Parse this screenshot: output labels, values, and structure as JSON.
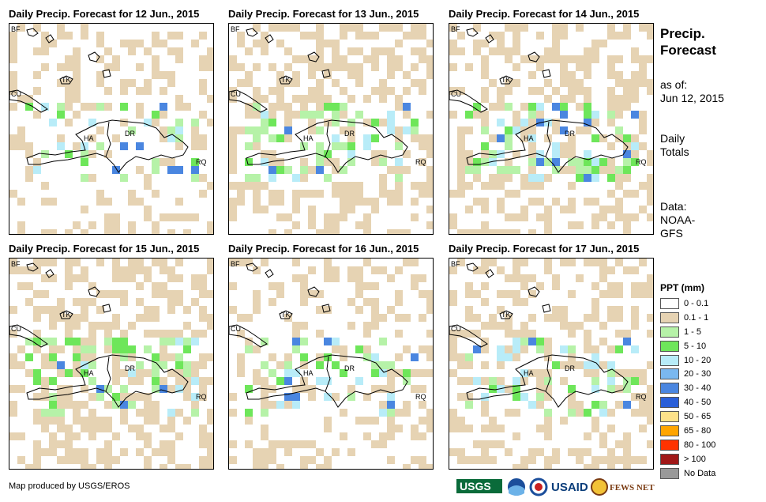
{
  "panels": [
    {
      "title": "Daily Precip. Forecast for 12 Jun., 2015",
      "seed": 12,
      "density": 0.35
    },
    {
      "title": "Daily Precip. Forecast for 13 Jun., 2015",
      "seed": 13,
      "density": 0.55
    },
    {
      "title": "Daily Precip. Forecast for 14 Jun., 2015",
      "seed": 14,
      "density": 0.5
    },
    {
      "title": "Daily Precip. Forecast for 15 Jun., 2015",
      "seed": 15,
      "density": 0.55
    },
    {
      "title": "Daily Precip. Forecast for 16 Jun., 2015",
      "seed": 16,
      "density": 0.35
    },
    {
      "title": "Daily Precip. Forecast for 17 Jun., 2015",
      "seed": 17,
      "density": 0.45
    }
  ],
  "map_labels": {
    "bf": "BF",
    "cu": "CU",
    "tk": "TK",
    "ha": "HA",
    "dr": "DR",
    "rq": "RQ"
  },
  "sidebar": {
    "title_line1": "Precip.",
    "title_line2": "Forecast",
    "asof_label": "as of:",
    "asof_date": "Jun 12, 2015",
    "totals_line1": "Daily",
    "totals_line2": "Totals",
    "data_line1": "Data:",
    "data_line2": "NOAA-",
    "data_line3": "GFS"
  },
  "legend": {
    "title": "PPT (mm)",
    "items": [
      {
        "label": "0 - 0.1",
        "color": "#ffffff"
      },
      {
        "label": "0.1 - 1",
        "color": "#e6d3b3"
      },
      {
        "label": "1 - 5",
        "color": "#b6f2a8"
      },
      {
        "label": "5 - 10",
        "color": "#6ee65a"
      },
      {
        "label": "10 - 20",
        "color": "#b8ecf8"
      },
      {
        "label": "20 - 30",
        "color": "#7ab8f0"
      },
      {
        "label": "30 - 40",
        "color": "#4a86e0"
      },
      {
        "label": "40 - 50",
        "color": "#2a5fd8"
      },
      {
        "label": "50 - 65",
        "color": "#fde28a"
      },
      {
        "label": "65 - 80",
        "color": "#ffa500"
      },
      {
        "label": "80 - 100",
        "color": "#ff3300"
      },
      {
        "label": "> 100",
        "color": "#a01818"
      },
      {
        "label": "No Data",
        "color": "#999999"
      }
    ]
  },
  "credit": "Map produced by USGS/EROS",
  "logos": {
    "usgs": "USGS",
    "usaid": "USAID",
    "fews": "FEWS NET"
  }
}
